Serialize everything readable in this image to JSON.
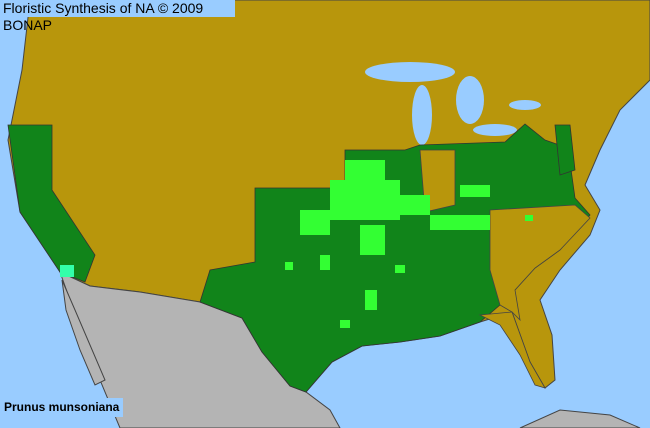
{
  "header": {
    "title": "Floristic Synthesis of NA © 2009 BONAP"
  },
  "map": {
    "species": "Prunus munsoniana",
    "colors": {
      "water": "#99ccff",
      "not_present": "#b8960c",
      "present_state": "#11841a",
      "present_county": "#33ff33",
      "native_adventive": "#33ffaa",
      "outside_range": "#b4b4b4",
      "boundary": "#444444"
    }
  }
}
